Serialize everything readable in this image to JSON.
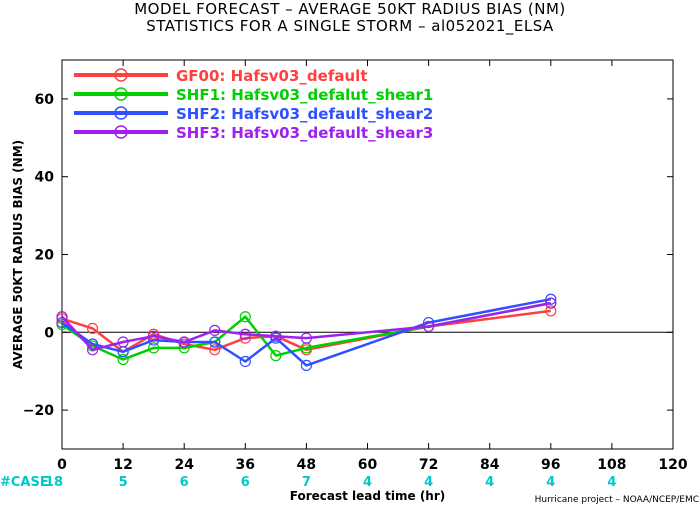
{
  "header": {
    "title_line1": "MODEL FORECAST – AVERAGE 50KT RADIUS BIAS (NM)",
    "title_line2": "STATISTICS FOR A SINGLE STORM – al052021_ELSA"
  },
  "footer": {
    "case_label": "#CASE",
    "credit": "Hurricane project – NOAA/NCEP/EMC"
  },
  "chart_data": {
    "type": "line",
    "xlabel": "Forecast lead time (hr)",
    "ylabel": "AVERAGE 50KT RADIUS BIAS (NM)",
    "xlim": [
      0,
      120
    ],
    "ylim": [
      -30,
      70
    ],
    "xticks": [
      0,
      12,
      24,
      36,
      48,
      60,
      72,
      84,
      96,
      108,
      120
    ],
    "yticks": [
      -20,
      0,
      20,
      40,
      60
    ],
    "ytick_labels": [
      "−20",
      "0",
      "20",
      "40",
      "60"
    ],
    "reference_line_y": 0,
    "legend_position": "top-left",
    "case_counts": [
      {
        "x": 0,
        "label": "18"
      },
      {
        "x": 12,
        "label": "5"
      },
      {
        "x": 24,
        "label": "6"
      },
      {
        "x": 36,
        "label": "6"
      },
      {
        "x": 48,
        "label": "7"
      },
      {
        "x": 60,
        "label": "4"
      },
      {
        "x": 72,
        "label": "4"
      },
      {
        "x": 84,
        "label": "4"
      },
      {
        "x": 96,
        "label": "4"
      },
      {
        "x": 108,
        "label": "4"
      }
    ],
    "series": [
      {
        "name": "GF00: Hafsv03_default",
        "color": "#ff4040",
        "x": [
          0,
          6,
          12,
          18,
          24,
          30,
          36,
          42,
          48,
          72,
          96
        ],
        "y": [
          3.5,
          1.0,
          -5.0,
          -0.5,
          -3.0,
          -4.5,
          -1.5,
          -1.0,
          -4.5,
          1.5,
          5.5
        ]
      },
      {
        "name": "SHF1: Hafsv03_defalut_shear1",
        "color": "#00d000",
        "x": [
          0,
          6,
          12,
          18,
          24,
          30,
          36,
          42,
          48,
          72,
          96
        ],
        "y": [
          2.0,
          -3.5,
          -7.0,
          -4.0,
          -4.0,
          -2.5,
          4.0,
          -6.0,
          -4.0,
          1.5,
          7.5
        ]
      },
      {
        "name": "SHF2: Hafsv03_default_shear2",
        "color": "#3050ff",
        "x": [
          0,
          6,
          12,
          18,
          24,
          30,
          36,
          42,
          48,
          72,
          96
        ],
        "y": [
          2.5,
          -3.0,
          -5.0,
          -2.0,
          -2.5,
          -2.5,
          -7.5,
          -1.5,
          -8.5,
          2.5,
          8.5
        ]
      },
      {
        "name": "SHF3: Hafsv03_default_shear3",
        "color": "#a020f0",
        "x": [
          0,
          6,
          12,
          18,
          24,
          30,
          36,
          42,
          48,
          72,
          96
        ],
        "y": [
          4.0,
          -4.5,
          -2.5,
          -1.0,
          -2.5,
          0.5,
          -0.5,
          -1.0,
          -1.5,
          1.5,
          7.5
        ]
      }
    ]
  }
}
